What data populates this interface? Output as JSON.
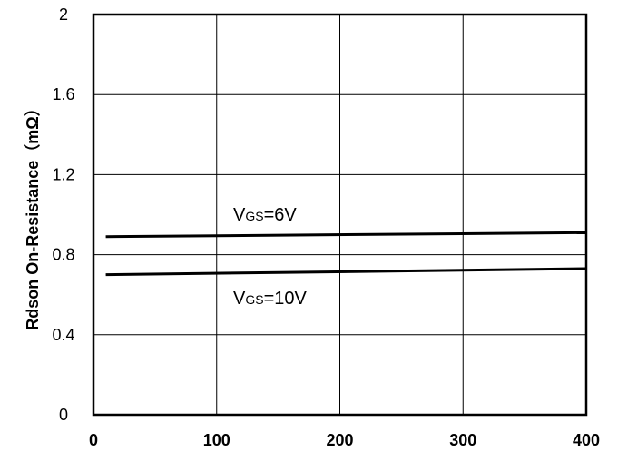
{
  "chart_data": {
    "type": "line",
    "title": "",
    "xlabel": "",
    "ylabel": "Rdson On-Resistance（mΩ）",
    "xlim": [
      0,
      400
    ],
    "ylim": [
      0,
      2
    ],
    "xticks": [
      0,
      100,
      200,
      300,
      400
    ],
    "xtick_labels": [
      "0",
      "100",
      "200",
      "300",
      "400"
    ],
    "yticks": [
      0,
      0.4,
      0.8,
      1.2,
      1.6,
      2
    ],
    "ytick_labels": [
      "0",
      "0.4",
      "0.8",
      "1.2",
      "1.6",
      "2"
    ],
    "grid": true,
    "series": [
      {
        "name": "VGS=6V",
        "x": [
          10,
          400
        ],
        "y": [
          0.89,
          0.91
        ]
      },
      {
        "name": "VGS=10V",
        "x": [
          10,
          400
        ],
        "y": [
          0.7,
          0.73
        ]
      }
    ],
    "annotations": [
      {
        "main": "V",
        "sub": "GS",
        "rest": "=6V"
      },
      {
        "main": "V",
        "sub": "GS",
        "rest": "=10V"
      }
    ]
  }
}
